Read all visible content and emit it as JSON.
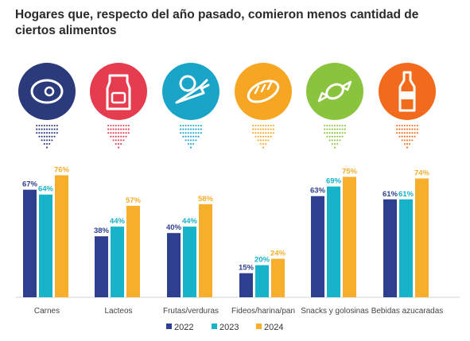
{
  "chart_data": {
    "type": "bar",
    "title": "Hogares que, respecto del año pasado, comieron menos cantidad de ciertos alimentos",
    "categories": [
      "Carnes",
      "Lacteos",
      "Frutas/verduras",
      "Fideos/harina/pan",
      "Snacks y golosinas",
      "Bebidas azucaradas"
    ],
    "category_icons": [
      "meat-steak-icon",
      "milk-carton-icon",
      "vegetables-icon",
      "bread-icon",
      "candy-icon",
      "soda-bottle-icon"
    ],
    "category_colors": [
      "#2b3a7a",
      "#e63c50",
      "#1aa5c8",
      "#f6a623",
      "#8ac43f",
      "#f26b1d"
    ],
    "series": [
      {
        "name": "2022",
        "color": "#2e3f8f",
        "values": [
          67,
          38,
          40,
          15,
          63,
          61
        ]
      },
      {
        "name": "2023",
        "color": "#17b3c9",
        "values": [
          64,
          44,
          44,
          20,
          69,
          61
        ]
      },
      {
        "name": "2024",
        "color": "#f7ae2b",
        "values": [
          76,
          57,
          58,
          24,
          75,
          74
        ]
      }
    ],
    "value_labels": [
      [
        "67%",
        "38%",
        "40%",
        "15%",
        "63%",
        "61%"
      ],
      [
        "64%",
        "44%",
        "44%",
        "20%",
        "69%",
        "61%"
      ],
      [
        "76%",
        "57%",
        "58%",
        "24%",
        "75%",
        "74%"
      ]
    ],
    "ylim": [
      0,
      100
    ],
    "legend_position": "bottom",
    "grid": false
  }
}
